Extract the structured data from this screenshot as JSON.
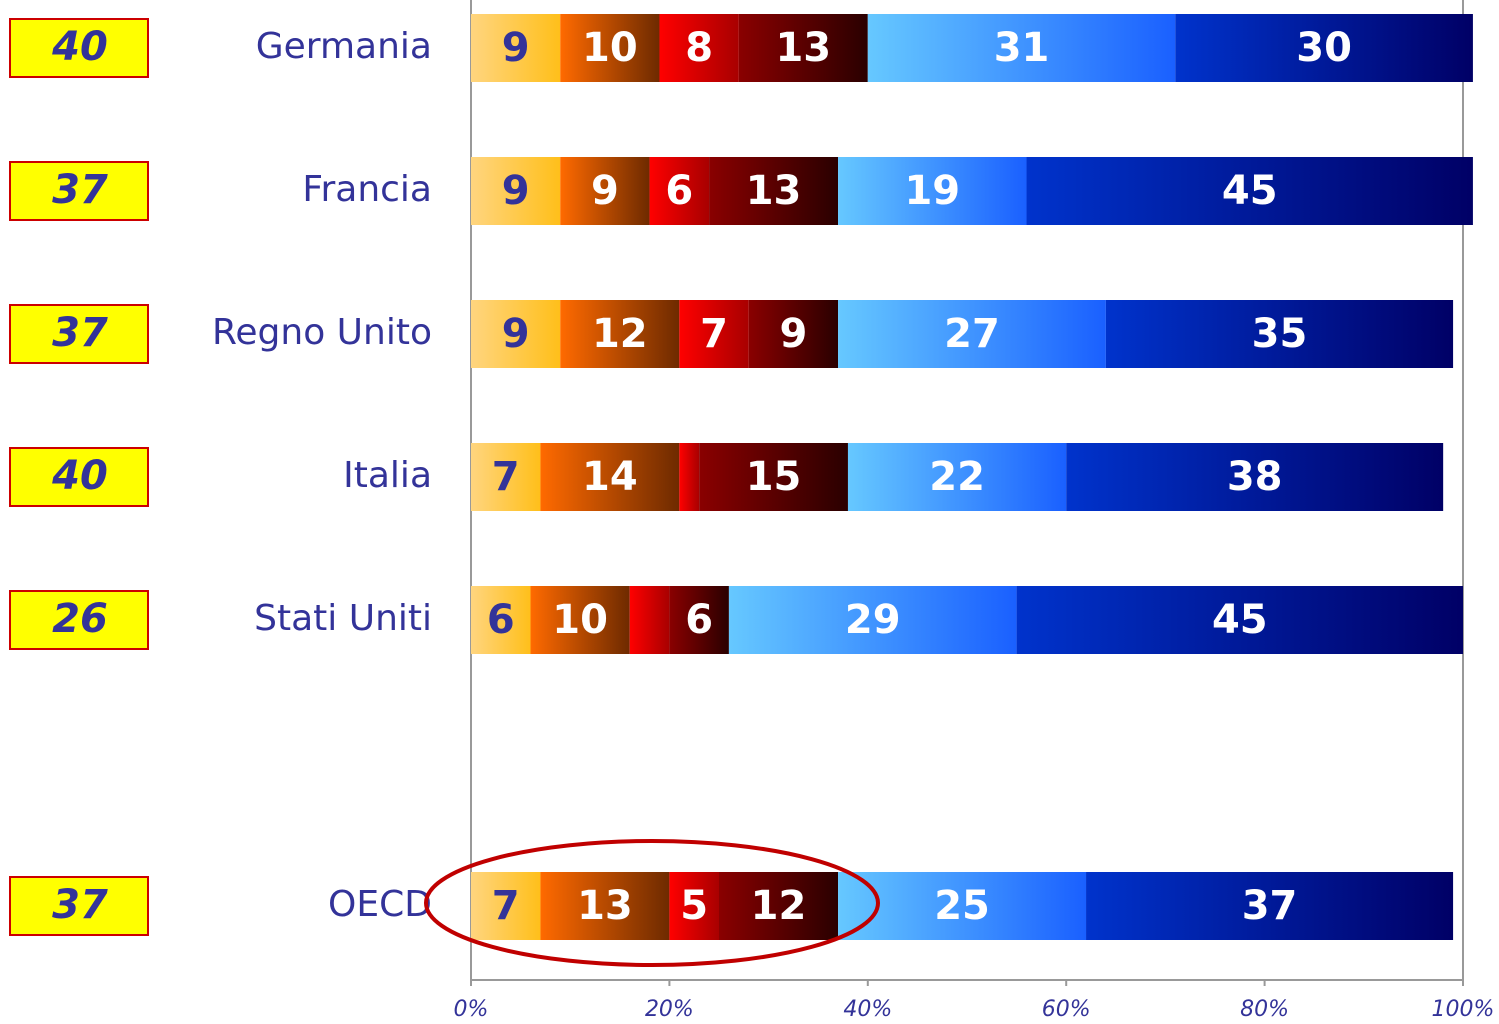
{
  "chart_data": {
    "type": "stacked_barh",
    "categories": [
      "Germania",
      "Francia",
      "Regno Unito",
      "Italia",
      "Stati Uniti",
      null,
      "OECD"
    ],
    "side_values": [
      40,
      37,
      37,
      40,
      26,
      null,
      37
    ],
    "series": [
      {
        "color": "#ffd57f",
        "color2": "#ffbf1a",
        "label_color": "#333399",
        "values": [
          9,
          9,
          9,
          7,
          6,
          null,
          7
        ]
      },
      {
        "color": "#ff6a00",
        "color2": "#6e2a00",
        "label_color": "#ffffff",
        "values": [
          10,
          9,
          12,
          14,
          10,
          null,
          13
        ]
      },
      {
        "color": "#ff0000",
        "color2": "#a80000",
        "label_color": "#ffffff",
        "values": [
          8,
          6,
          7,
          2,
          4,
          null,
          5
        ],
        "value_labels": [
          8,
          6,
          7,
          null,
          null,
          null,
          5
        ]
      },
      {
        "color": "#8a0000",
        "color2": "#2a0000",
        "label_color": "#ffffff",
        "values": [
          13,
          13,
          9,
          15,
          6,
          null,
          12
        ]
      },
      {
        "color": "#66c8ff",
        "color2": "#1a60ff",
        "label_color": "#ffffff",
        "values": [
          31,
          19,
          27,
          22,
          29,
          null,
          25
        ]
      },
      {
        "color": "#0033cc",
        "color2": "#000066",
        "label_color": "#ffffff",
        "values": [
          30,
          45,
          35,
          38,
          45,
          null,
          37
        ]
      }
    ],
    "xlim": [
      0,
      100
    ],
    "xticks": [
      {
        "value": 0,
        "label": "0%"
      },
      {
        "value": 20,
        "label": "20%"
      },
      {
        "value": 40,
        "label": "40%"
      },
      {
        "value": 60,
        "label": "60%"
      },
      {
        "value": 80,
        "label": "80%"
      },
      {
        "value": 100,
        "label": "100%"
      }
    ]
  }
}
